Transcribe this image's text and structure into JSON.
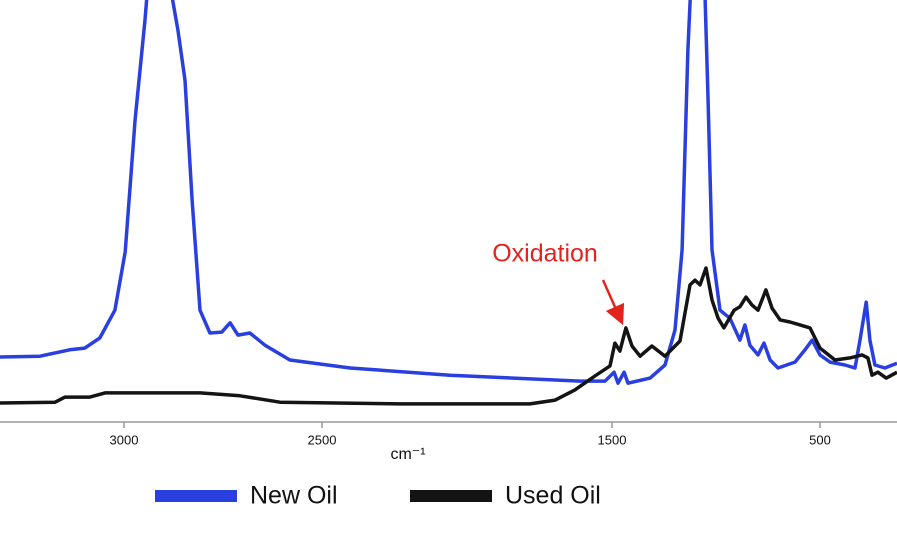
{
  "chart_data": {
    "type": "line",
    "xlabel": "cm⁻¹",
    "annotation": "Oxidation",
    "xlim": [
      3313,
      315
    ],
    "xticks": [
      3000,
      2500,
      1500,
      500
    ],
    "ylim": [
      0,
      100
    ],
    "series": [
      {
        "name": "New Oil",
        "color": "#2a3fe0",
        "x": [
          3313,
          3212,
          3137,
          3099,
          3061,
          3023,
          2997,
          2972,
          2947,
          2934,
          2896,
          2864,
          2846,
          2828,
          2808,
          2783,
          2753,
          2732,
          2712,
          2682,
          2644,
          2581,
          2403,
          2059,
          1610,
          1524,
          1490,
          1471,
          1442,
          1423,
          1317,
          1245,
          1197,
          1163,
          1135,
          1115,
          1058,
          1038,
          1019,
          981,
          933,
          885,
          861,
          837,
          798,
          769,
          740,
          702,
          620,
          572,
          538,
          500,
          476,
          440,
          416,
          404,
          389,
          380,
          368,
          344,
          315
        ],
        "values": [
          15.4,
          15.6,
          17.1,
          17.5,
          19.9,
          26.5,
          40.3,
          71.6,
          95.3,
          110,
          110,
          92.9,
          81.0,
          52.6,
          26.5,
          21.1,
          21.3,
          23.5,
          20.6,
          21.1,
          18.2,
          14.7,
          12.8,
          11.1,
          9.7,
          9.7,
          11.8,
          9.2,
          11.8,
          9.2,
          10.4,
          13.5,
          21.8,
          40.8,
          88.2,
          110,
          110,
          76.1,
          40.8,
          26.5,
          24.6,
          19.4,
          23.0,
          18.2,
          15.9,
          18.7,
          14.7,
          12.8,
          14.2,
          17.1,
          19.4,
          15.9,
          14.2,
          13.5,
          12.8,
          19.4,
          28.4,
          19.4,
          13.5,
          12.8,
          13.9
        ]
      },
      {
        "name": "Used Oil",
        "color": "#141414",
        "x": [
          3313,
          3174,
          3149,
          3086,
          3048,
          2808,
          2707,
          2606,
          2231,
          1783,
          1696,
          1628,
          1559,
          1507,
          1486,
          1462,
          1433,
          1404,
          1365,
          1308,
          1245,
          1173,
          1125,
          1101,
          1077,
          1048,
          1019,
          990,
          962,
          913,
          885,
          856,
          827,
          798,
          760,
          731,
          692,
          644,
          596,
          548,
          500,
          464,
          428,
          399,
          385,
          375,
          361,
          341,
          315
        ],
        "values": [
          4.5,
          4.7,
          5.9,
          5.9,
          6.9,
          6.9,
          6.2,
          4.7,
          4.3,
          4.3,
          5.2,
          7.6,
          10.9,
          13.3,
          18.7,
          16.8,
          22.3,
          18.0,
          15.6,
          18.0,
          15.6,
          19.2,
          32.5,
          33.6,
          32.5,
          36.5,
          28.9,
          24.6,
          22.3,
          26.5,
          27.3,
          29.6,
          27.7,
          26.5,
          31.3,
          27.0,
          24.2,
          23.7,
          23.0,
          22.3,
          17.5,
          14.7,
          15.2,
          15.9,
          15.2,
          11.1,
          11.8,
          10.4,
          11.8
        ]
      }
    ]
  }
}
